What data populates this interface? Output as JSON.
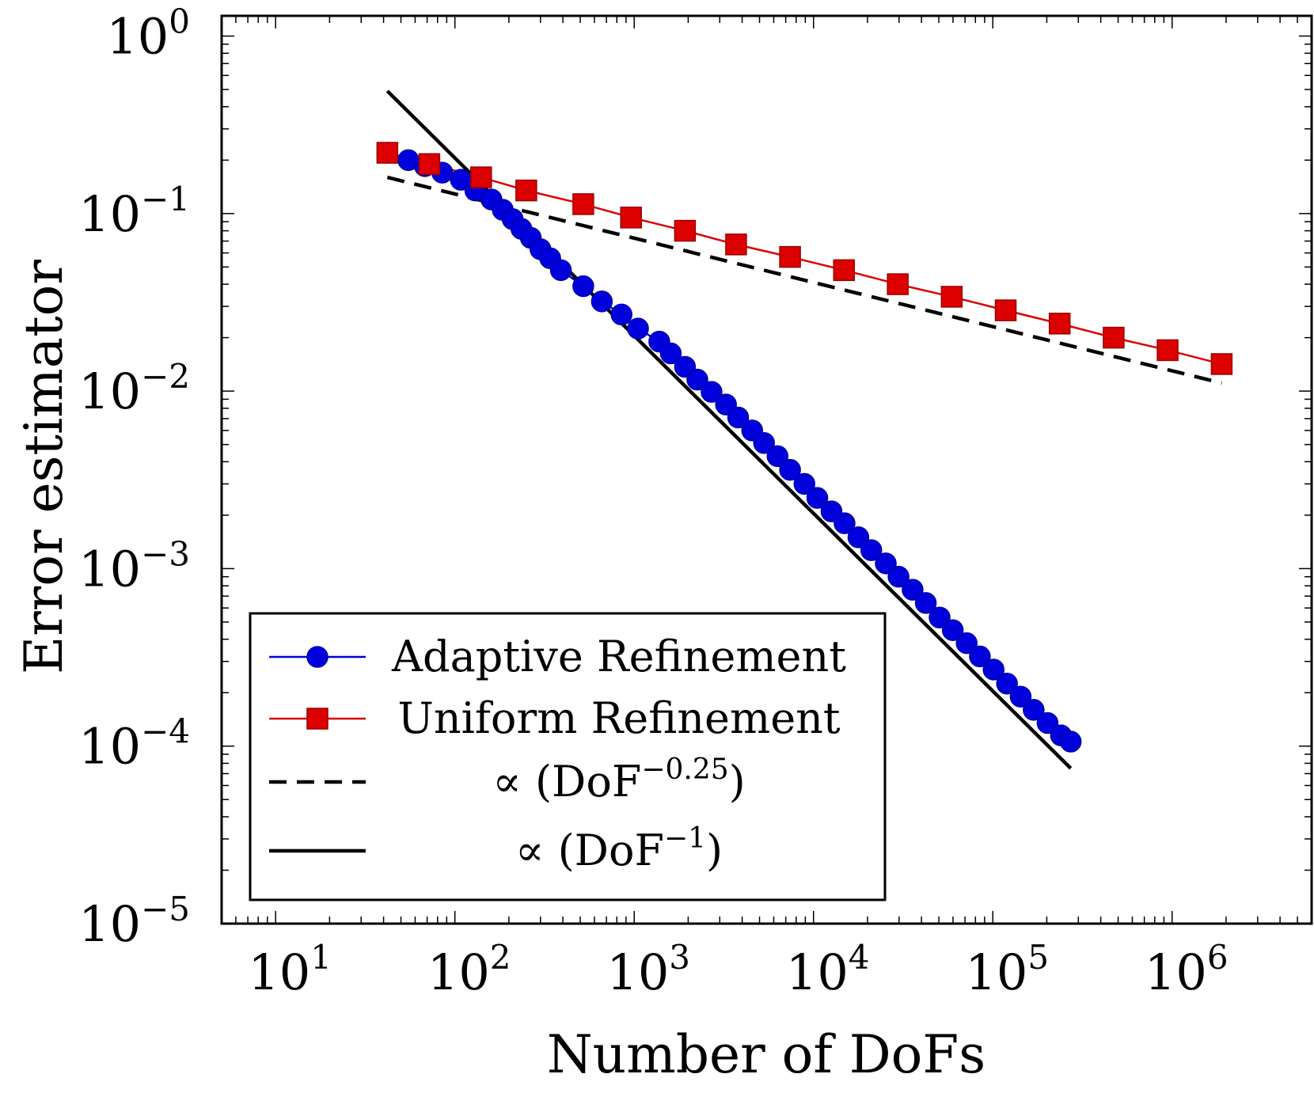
{
  "chart_data": {
    "type": "line",
    "xscale": "log",
    "yscale": "log",
    "xlim": [
      5,
      6000000
    ],
    "ylim": [
      1e-05,
      1.3
    ],
    "xlabel": "Number of DoFs",
    "ylabel": "Error estimator",
    "grid": false,
    "legend_position": "bottom-left",
    "x_ticks": [
      {
        "value": 10,
        "base": "10",
        "exp": "1"
      },
      {
        "value": 100,
        "base": "10",
        "exp": "2"
      },
      {
        "value": 1000,
        "base": "10",
        "exp": "3"
      },
      {
        "value": 10000,
        "base": "10",
        "exp": "4"
      },
      {
        "value": 100000,
        "base": "10",
        "exp": "5"
      },
      {
        "value": 1000000,
        "base": "10",
        "exp": "6"
      }
    ],
    "y_ticks": [
      {
        "value": 1,
        "base": "10",
        "exp": "0"
      },
      {
        "value": 0.1,
        "base": "10",
        "exp": "−1"
      },
      {
        "value": 0.01,
        "base": "10",
        "exp": "−2"
      },
      {
        "value": 0.001,
        "base": "10",
        "exp": "−3"
      },
      {
        "value": 0.0001,
        "base": "10",
        "exp": "−4"
      },
      {
        "value": 1e-05,
        "base": "10",
        "exp": "−5"
      }
    ],
    "series": [
      {
        "name": "Adaptive Refinement",
        "color": "#0000dd",
        "marker": "circle",
        "x": [
          42,
          55,
          68,
          85,
          108,
          130,
          160,
          185,
          210,
          235,
          265,
          300,
          340,
          390,
          520,
          660,
          850,
          1050,
          1380,
          1600,
          1920,
          2250,
          2700,
          3250,
          3800,
          4550,
          5300,
          6300,
          7400,
          8900,
          10500,
          12600,
          14900,
          17800,
          21000,
          25300,
          29800,
          35700,
          42300,
          50500,
          59800,
          71500,
          84700,
          101000,
          120000,
          143000,
          169000,
          202000,
          240000,
          272000
        ],
        "y": [
          0.22,
          0.2,
          0.185,
          0.17,
          0.155,
          0.135,
          0.12,
          0.105,
          0.093,
          0.082,
          0.073,
          0.063,
          0.056,
          0.048,
          0.039,
          0.032,
          0.027,
          0.0225,
          0.019,
          0.0163,
          0.0137,
          0.0116,
          0.0099,
          0.0084,
          0.0071,
          0.006,
          0.0051,
          0.0043,
          0.0036,
          0.003,
          0.0025,
          0.0021,
          0.0018,
          0.0015,
          0.00127,
          0.00107,
          0.0009,
          0.00076,
          0.00064,
          0.00053,
          0.00045,
          0.00038,
          0.00032,
          0.00027,
          0.000225,
          0.00019,
          0.00016,
          0.000135,
          0.000115,
          0.000106
        ]
      },
      {
        "name": "Uniform Refinement",
        "color": "#dd0000",
        "marker": "square",
        "x": [
          42,
          72,
          140,
          250,
          520,
          960,
          1920,
          3700,
          7400,
          14800,
          29500,
          59000,
          118000,
          236000,
          472000,
          944000,
          1890000
        ],
        "y": [
          0.22,
          0.19,
          0.16,
          0.135,
          0.113,
          0.095,
          0.08,
          0.067,
          0.057,
          0.048,
          0.04,
          0.034,
          0.0285,
          0.024,
          0.02,
          0.017,
          0.0142
        ]
      },
      {
        "name": "∝ (DoF^{−0.25})",
        "color": "#000000",
        "style": "dashed",
        "x": [
          42,
          1890000
        ],
        "y": [
          0.16,
          0.0111
        ]
      },
      {
        "name": "∝ (DoF^{−1})",
        "color": "#000000",
        "style": "solid",
        "x": [
          42,
          272000
        ],
        "y": [
          0.49,
          7.5e-05
        ]
      }
    ],
    "legend": [
      {
        "label": "Adaptive Refinement",
        "sample": "circle-line",
        "color": "#0000dd"
      },
      {
        "label": "Uniform Refinement",
        "sample": "square-line",
        "color": "#dd0000"
      },
      {
        "prefix": "∝ (DoF",
        "sup": "−0.25",
        "suffix": ")",
        "sample": "dashed",
        "color": "#000000"
      },
      {
        "prefix": "∝ (DoF",
        "sup": "−1",
        "suffix": ")",
        "sample": "solid",
        "color": "#000000"
      }
    ]
  }
}
